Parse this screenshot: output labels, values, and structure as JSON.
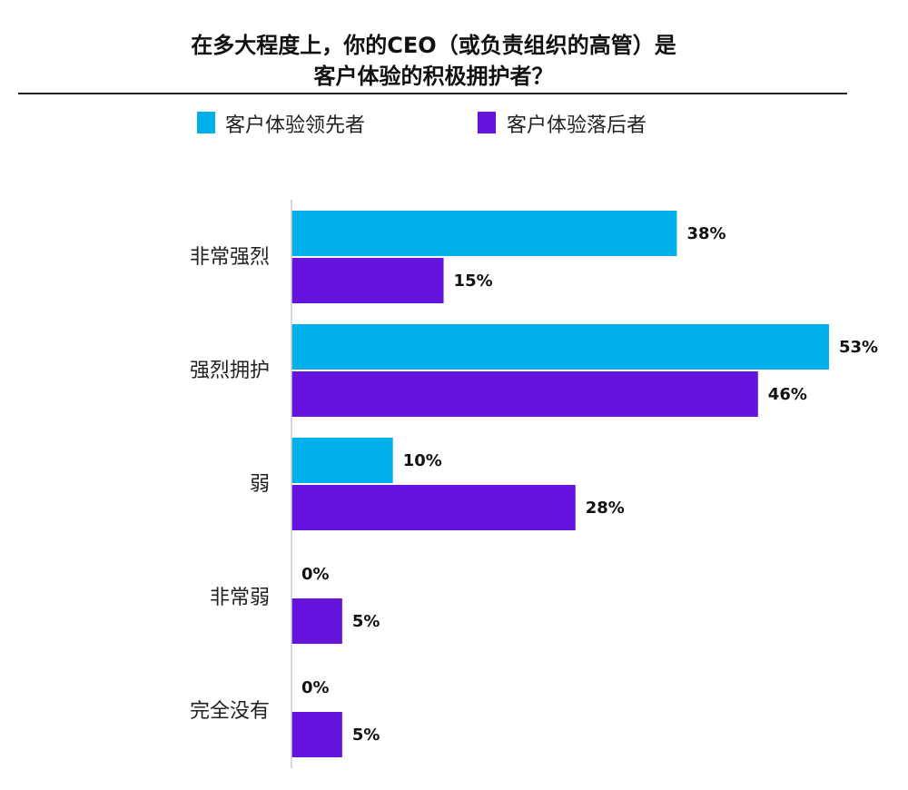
{
  "chart_data": {
    "type": "bar",
    "orientation": "horizontal",
    "title_lines": [
      "在多大程度上，你的CEO（或负责组织的高管）是",
      "客户体验的积极拥护者？"
    ],
    "categories": [
      "非常强烈",
      "强烈拥护",
      "弱",
      "非常弱",
      "完全没有"
    ],
    "series": [
      {
        "name": "客户体验领先者",
        "color": "#00B0EA",
        "values": [
          38,
          53,
          10,
          0,
          0
        ]
      },
      {
        "name": "客户体验落后者",
        "color": "#6414DC",
        "values": [
          15,
          46,
          28,
          5,
          5
        ]
      }
    ],
    "value_suffix": "%",
    "xlim": [
      0,
      53
    ],
    "grid": false,
    "legend": "top"
  }
}
